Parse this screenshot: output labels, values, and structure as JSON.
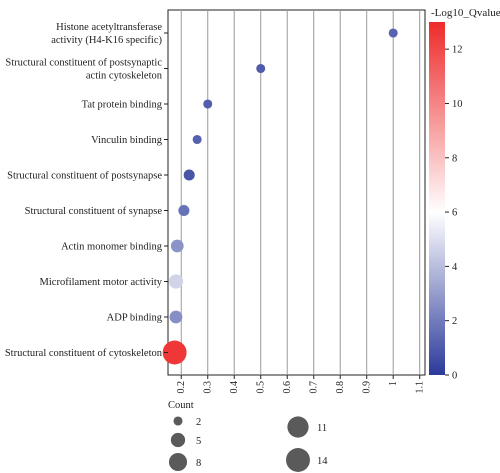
{
  "chart_data": {
    "type": "scatter",
    "categories": [
      "Histone acetyltransferase activity (H4-K16 specific)",
      "Structural constituent of postsynaptic actin cytoskeleton",
      "Tat protein binding",
      "Vinculin binding",
      "Structural constituent of postsynapse",
      "Structural constituent of synapse",
      "Actin monomer binding",
      "Microfilament motor activity",
      "ADP binding",
      "Structural constituent of cytoskeleton"
    ],
    "category_lines": [
      [
        "Histone acetyltransferase",
        "activity (H4-K16 specific)"
      ],
      [
        "Structural constituent of postsynaptic",
        "actin cytoskeleton"
      ],
      [
        "Tat protein binding"
      ],
      [
        "Vinculin binding"
      ],
      [
        "Structural constituent of postsynapse"
      ],
      [
        "Structural constituent of synapse"
      ],
      [
        "Actin monomer binding"
      ],
      [
        "Microfilament motor activity"
      ],
      [
        "ADP binding"
      ],
      [
        "Structural constituent of cytoskeleton"
      ]
    ],
    "points": [
      {
        "category": "Histone acetyltransferase activity (H4-K16 specific)",
        "x": 1.0,
        "count": 2,
        "neg_log10_qvalue": 1.5
      },
      {
        "category": "Structural constituent of postsynaptic actin cytoskeleton",
        "x": 0.5,
        "count": 2,
        "neg_log10_qvalue": 1.2
      },
      {
        "category": "Tat protein binding",
        "x": 0.3,
        "count": 2,
        "neg_log10_qvalue": 1.3
      },
      {
        "category": "Vinculin binding",
        "x": 0.26,
        "count": 2,
        "neg_log10_qvalue": 1.4
      },
      {
        "category": "Structural constituent of postsynapse",
        "x": 0.23,
        "count": 3,
        "neg_log10_qvalue": 1.0
      },
      {
        "category": "Structural constituent of synapse",
        "x": 0.21,
        "count": 3,
        "neg_log10_qvalue": 2.0
      },
      {
        "category": "Actin monomer binding",
        "x": 0.185,
        "count": 4,
        "neg_log10_qvalue": 3.2
      },
      {
        "category": "Microfilament motor activity",
        "x": 0.18,
        "count": 5,
        "neg_log10_qvalue": 5.5
      },
      {
        "category": "ADP binding",
        "x": 0.18,
        "count": 4,
        "neg_log10_qvalue": 3.0
      },
      {
        "category": "Structural constituent of cytoskeleton",
        "x": 0.175,
        "count": 14,
        "neg_log10_qvalue": 12.5
      }
    ],
    "x_ticks": [
      "0.2",
      "0.3",
      "0.4",
      "0.5",
      "0.6",
      "0.7",
      "0.8",
      "0.9",
      "1",
      "1.1"
    ],
    "x_tick_values": [
      0.2,
      0.3,
      0.4,
      0.5,
      0.6,
      0.7,
      0.8,
      0.9,
      1.0,
      1.1
    ],
    "xlim": [
      0.15,
      1.12
    ],
    "grid": "vertical",
    "colorbar": {
      "title": "-Log10_Qvalue",
      "ticks": [
        "0",
        "2",
        "4",
        "6",
        "8",
        "10",
        "12"
      ],
      "tick_values": [
        0,
        2,
        4,
        6,
        8,
        10,
        12
      ],
      "range": [
        0,
        13
      ],
      "colors": [
        "#2b3a9a",
        "#ffffff",
        "#ee2a2a"
      ]
    },
    "size_legend": {
      "title": "Count",
      "entries": [
        {
          "label": "2",
          "value": 2
        },
        {
          "label": "5",
          "value": 5
        },
        {
          "label": "8",
          "value": 8
        },
        {
          "label": "11",
          "value": 11
        },
        {
          "label": "14",
          "value": 14
        }
      ],
      "placement": "bottom"
    },
    "marker_color_legend": "#5a5a5a"
  }
}
